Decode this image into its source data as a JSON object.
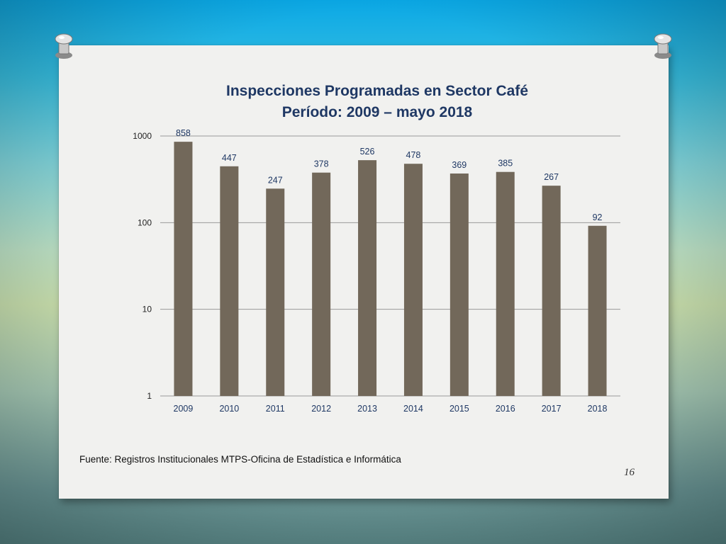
{
  "slide": {
    "title_line1": "Inspecciones Programadas en  Sector Café",
    "title_line2": "Período: 2009 – mayo 2018",
    "source": "Fuente: Registros Institucionales MTPS-Oficina de Estadística e Informática",
    "page_number": "16"
  },
  "colors": {
    "bar": "#72685a",
    "label": "#1f3864",
    "grid": "#999999"
  },
  "chart_data": {
    "type": "bar",
    "title": "Inspecciones Programadas en  Sector Café / Período: 2009 – mayo 2018",
    "xlabel": "",
    "ylabel": "",
    "scale": "log",
    "ylim": [
      1,
      1000
    ],
    "yticks": [
      "1",
      "10",
      "100",
      "1000"
    ],
    "categories": [
      "2009",
      "2010",
      "2011",
      "2012",
      "2013",
      "2014",
      "2015",
      "2016",
      "2017",
      "2018"
    ],
    "values": [
      858,
      447,
      247,
      378,
      526,
      478,
      369,
      385,
      267,
      92
    ],
    "grid": true,
    "legend": "none"
  }
}
